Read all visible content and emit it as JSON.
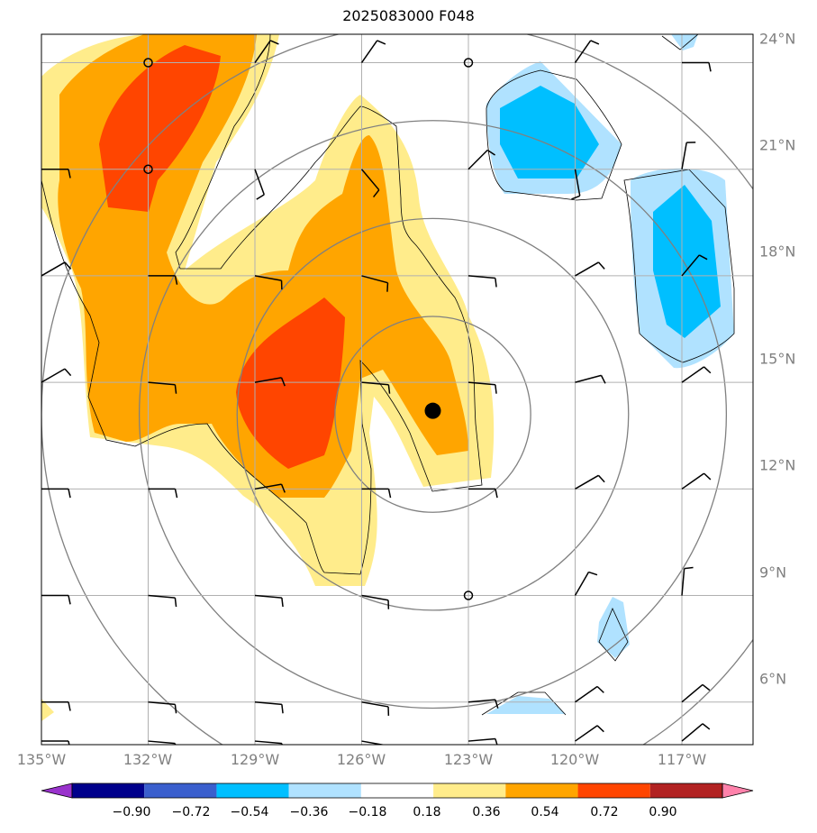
{
  "title": "2025083000 F048",
  "map": {
    "lon_ticks": [
      {
        "value": -135,
        "label": "135°W"
      },
      {
        "value": -132,
        "label": "132°W"
      },
      {
        "value": -129,
        "label": "129°W"
      },
      {
        "value": -126,
        "label": "126°W"
      },
      {
        "value": -123,
        "label": "123°W"
      },
      {
        "value": -120,
        "label": "120°W"
      },
      {
        "value": -117,
        "label": "117°W"
      }
    ],
    "lat_ticks": [
      {
        "value": 24,
        "label": "24°N"
      },
      {
        "value": 21,
        "label": "21°N"
      },
      {
        "value": 18,
        "label": "18°N"
      },
      {
        "value": 15,
        "label": "15°N"
      },
      {
        "value": 12,
        "label": "12°N"
      },
      {
        "value": 9,
        "label": "9°N"
      },
      {
        "value": 6,
        "label": "6°N"
      }
    ],
    "lon_range": [
      -135,
      -115
    ],
    "lat_range": [
      4.8,
      24.8
    ],
    "storm_center": {
      "lon": -124.0,
      "lat": 14.2
    },
    "range_ring_radii_deg": [
      2.75,
      5.5,
      8.25,
      11.0
    ],
    "shading_fields": [
      {
        "name": "orange_northwest",
        "level": 0.54,
        "center": {
          "lon": -131.5,
          "lat": 20.5
        }
      },
      {
        "name": "orange_south",
        "level": 0.72,
        "center": {
          "lon": -127.3,
          "lat": 14.0
        }
      },
      {
        "name": "blue_north",
        "level": -0.54,
        "center": {
          "lon": -121.0,
          "lat": 21.2
        }
      },
      {
        "name": "blue_east",
        "level": -0.54,
        "center": {
          "lon": -117.0,
          "lat": 17.0
        }
      }
    ]
  },
  "colorbar": {
    "colors": [
      "#9932cc",
      "#00008b",
      "#3a5fcd",
      "#00bfff",
      "#b0e2ff",
      "#ffffff",
      "#ffec8b",
      "#ffa500",
      "#ff4500",
      "#b22222",
      "#ff82ab"
    ],
    "labels": [
      "−0.90",
      "−0.72",
      "−0.54",
      "−0.36",
      "−0.18",
      "0.18",
      "0.36",
      "0.54",
      "0.72",
      "0.90"
    ]
  },
  "colors": {
    "yellow": "#ffec8b",
    "orange": "#ffa500",
    "red": "#ff4500",
    "light_blue": "#b0e2ff",
    "blue": "#00bfff",
    "grid": "#b0b0b0",
    "ring": "#808080"
  }
}
